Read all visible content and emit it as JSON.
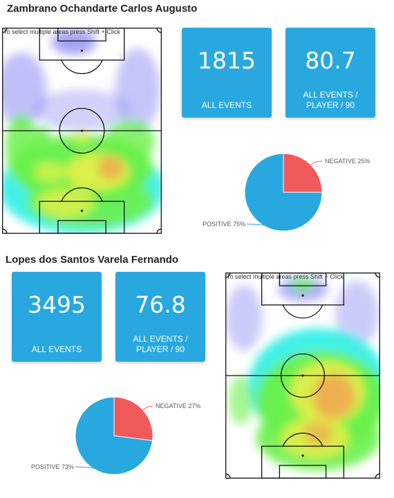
{
  "hint_text": "To select multiple areas press Shift + Click",
  "tile_color": "#29a8e0",
  "pie_colors": {
    "positive": "#29a8e0",
    "negative": "#f05a5a"
  },
  "players": [
    {
      "name": "Zambrano Ochandarte Carlos Augusto",
      "all_events_value": "1815",
      "all_events_label": "ALL EVENTS",
      "per90_value": "80.7",
      "per90_label_line1": "ALL EVENTS /",
      "per90_label_line2": "PLAYER / 90",
      "pie": {
        "negative_label": "NEGATIVE 25%",
        "positive_label": "POSITIVE 75%",
        "negative_fraction": 0.25
      }
    },
    {
      "name": "Lopes dos Santos Varela Fernando",
      "all_events_value": "3495",
      "all_events_label": "ALL EVENTS",
      "per90_value": "76.8",
      "per90_label_line1": "ALL EVENTS /",
      "per90_label_line2": "PLAYER / 90",
      "pie": {
        "negative_label": "NEGATIVE 27%",
        "positive_label": "POSITIVE 73%",
        "negative_fraction": 0.27
      }
    }
  ]
}
